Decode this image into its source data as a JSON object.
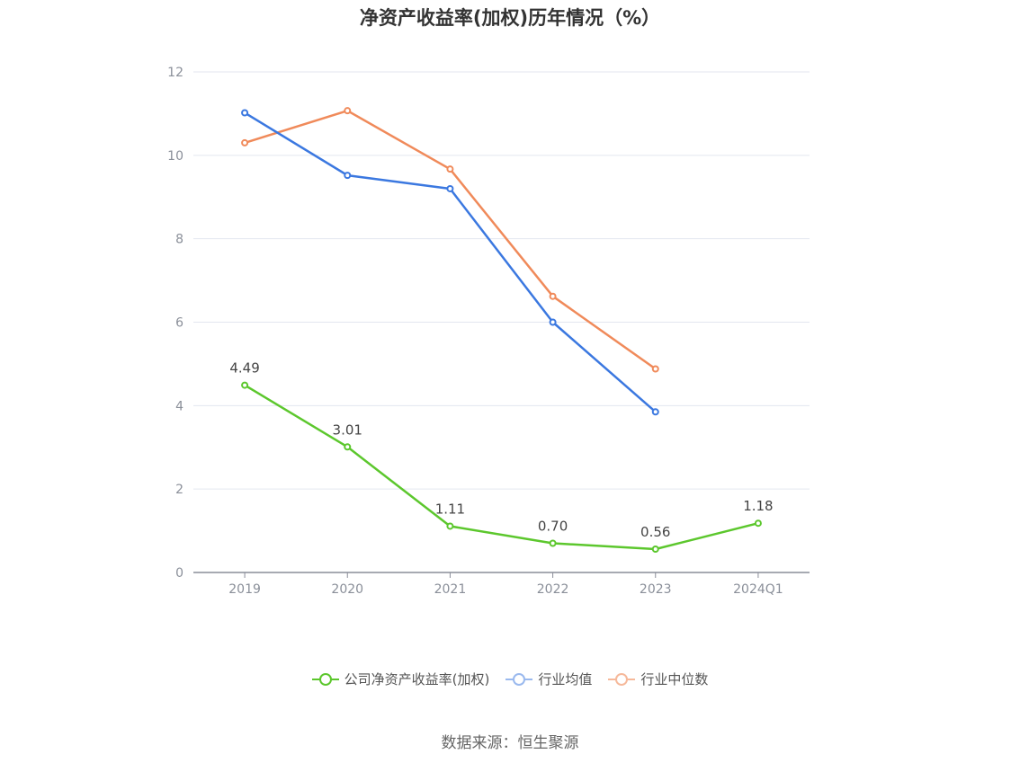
{
  "title": "净资产收益率(加权)历年情况（%）",
  "source": "数据来源：恒生聚源",
  "chart_data": {
    "type": "line",
    "categories": [
      "2019",
      "2020",
      "2021",
      "2022",
      "2023",
      "2024Q1"
    ],
    "ylim": [
      0,
      12
    ],
    "yticks": [
      0,
      2,
      4,
      6,
      8,
      10,
      12
    ],
    "grid": true,
    "legend_position": "bottom-center",
    "series": [
      {
        "name": "公司净资产收益率(加权)",
        "color": "#5cc72d",
        "values": [
          4.49,
          3.01,
          1.11,
          0.7,
          0.56,
          1.18
        ],
        "labels": [
          "4.49",
          "3.01",
          "1.11",
          "0.70",
          "0.56",
          "1.18"
        ]
      },
      {
        "name": "行业均值",
        "color": "#3b78e0",
        "legend_color": "#9ab9ee",
        "values": [
          11.02,
          9.52,
          9.2,
          6.0,
          3.85,
          null
        ]
      },
      {
        "name": "行业中位数",
        "color": "#f08a5a",
        "legend_color": "#f6b99b",
        "values": [
          10.3,
          11.07,
          9.67,
          6.62,
          4.88,
          null
        ]
      }
    ]
  }
}
